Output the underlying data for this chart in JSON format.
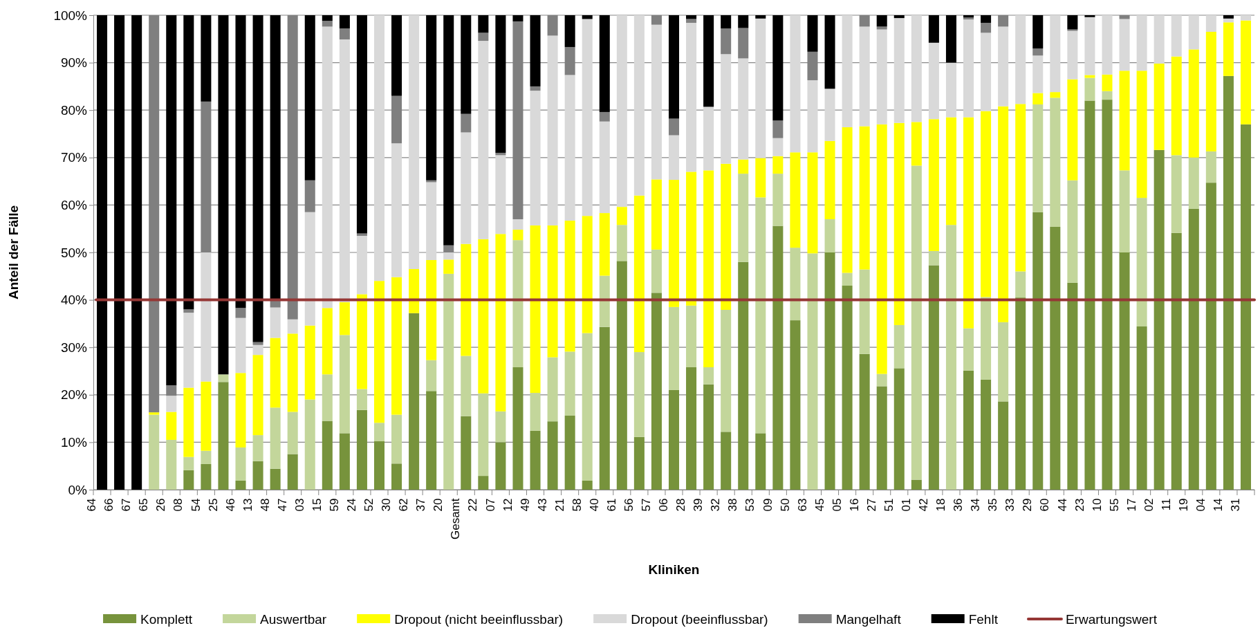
{
  "chart_data": {
    "type": "bar",
    "stacked": true,
    "xlabel": "Kliniken",
    "ylabel": "Anteil der  Fälle",
    "legend": "bottom",
    "grid": "y",
    "categories": [
      "64",
      "66",
      "67",
      "65",
      "26",
      "08",
      "54",
      "25",
      "46",
      "13",
      "48",
      "47",
      "03",
      "15",
      "59",
      "24",
      "52",
      "30",
      "62",
      "37",
      "20",
      "Gesamt",
      "22",
      "07",
      "12",
      "49",
      "43",
      "21",
      "58",
      "40",
      "61",
      "56",
      "57",
      "06",
      "28",
      "39",
      "32",
      "38",
      "53",
      "09",
      "50",
      "63",
      "45",
      "05",
      "16",
      "27",
      "51",
      "01",
      "42",
      "18",
      "36",
      "34",
      "35",
      "33",
      "29",
      "60",
      "44",
      "23",
      "10",
      "55",
      "17",
      "02",
      "11",
      "19",
      "04",
      "14",
      "31"
    ],
    "ylim": [
      0,
      100
    ],
    "yticks": [
      {
        "value": 0,
        "label": "0%"
      },
      {
        "value": 10,
        "label": "10%"
      },
      {
        "value": 20,
        "label": "20%"
      },
      {
        "value": 30,
        "label": "30%"
      },
      {
        "value": 40,
        "label": "40%"
      },
      {
        "value": 50,
        "label": "50%"
      },
      {
        "value": 60,
        "label": "60%"
      },
      {
        "value": 70,
        "label": "70%"
      },
      {
        "value": 80,
        "label": "80%"
      },
      {
        "value": 90,
        "label": "90%"
      },
      {
        "value": 100,
        "label": "100%"
      }
    ],
    "series": [
      {
        "name": "Komplett",
        "color": "#77933c",
        "values": [
          0,
          0,
          0,
          0,
          0,
          4.1,
          5.4,
          22.7,
          1.9,
          6,
          4.4,
          7.5,
          0,
          14.5,
          11.9,
          16.8,
          10.2,
          5.5,
          37.2,
          20.8,
          0,
          15.5,
          2.9,
          10,
          25.8,
          12.4,
          14.4,
          15.6,
          1.9,
          34.3,
          48.2,
          11.1,
          41.5,
          21,
          25.8,
          22.2,
          12.2,
          48,
          11.9,
          55.6,
          35.7,
          0,
          50,
          43,
          28.6,
          21.8,
          25.6,
          2.1,
          47.3,
          0,
          25.1,
          23.2,
          18.6,
          40.5,
          58.5,
          55.4,
          43.6,
          82,
          82.2,
          50,
          34.4,
          71.6,
          54.1,
          59.2,
          64.7,
          87.2,
          77
        ]
      },
      {
        "name": "Auswertbar",
        "color": "#c3d69b",
        "values": [
          0,
          0,
          0,
          15.8,
          10.5,
          2.8,
          2.8,
          1.6,
          7,
          5.5,
          12.9,
          8.9,
          19,
          9.8,
          20.7,
          4.4,
          3.9,
          10.3,
          0,
          6.5,
          45.5,
          12.7,
          17.4,
          6.5,
          26.8,
          8,
          13.5,
          13.5,
          31.1,
          10.8,
          7.6,
          17.9,
          9.1,
          17.5,
          13,
          3.6,
          25.7,
          18.6,
          49.7,
          11,
          15.3,
          49.8,
          7,
          2.7,
          17.8,
          2.6,
          9.1,
          66.2,
          3,
          55.8,
          8.9,
          17.4,
          16.7,
          5.5,
          22.7,
          27.2,
          21.6,
          4.8,
          1.8,
          17.3,
          27.1,
          0,
          16.4,
          10.8,
          6.6,
          0,
          0
        ]
      },
      {
        "name": "Dropout (nicht beeinflussbar)",
        "color": "#ffff00",
        "values": [
          0,
          0,
          0,
          0.5,
          5.9,
          14.6,
          14.6,
          0,
          15.7,
          16.9,
          14.7,
          16.5,
          15.6,
          14,
          6.9,
          20,
          29.9,
          29,
          9.3,
          21.1,
          3,
          23.6,
          32.5,
          37.4,
          2.2,
          35.3,
          27.8,
          27.6,
          24.7,
          13.2,
          3.8,
          33,
          14.8,
          26.8,
          28.2,
          41.5,
          30.8,
          3,
          8.3,
          3.7,
          20.1,
          21.3,
          16.5,
          30.7,
          30.2,
          52.6,
          42.6,
          9.2,
          27.8,
          22.7,
          44.5,
          39.2,
          45.5,
          35.3,
          2.4,
          1.2,
          21.3,
          0.6,
          3.5,
          21,
          26.8,
          18.2,
          20.8,
          22.8,
          25.2,
          11.3,
          21.9
        ]
      },
      {
        "name": "Dropout (beeinflussbar)",
        "color": "#d9d9d9",
        "values": [
          0,
          0,
          0,
          0,
          3.4,
          15.8,
          27.2,
          0,
          11.6,
          2.1,
          6.4,
          3,
          23.9,
          59.3,
          55.4,
          12.3,
          56,
          28.2,
          53.5,
          16.4,
          1.5,
          23.5,
          41.8,
          16.6,
          2.2,
          28.4,
          40,
          30.7,
          41.5,
          19.3,
          40.4,
          38,
          32.6,
          9.4,
          31.4,
          13.4,
          23.1,
          21.3,
          29.4,
          3.8,
          28.9,
          15.2,
          11,
          23.6,
          21,
          20,
          22.1,
          22.5,
          16.1,
          11.5,
          20.6,
          16.5,
          16.8,
          18.7,
          7.9,
          16.2,
          10.2,
          12.2,
          12.5,
          10.9,
          11.7,
          10.2,
          8.7,
          7.2,
          3.5,
          0.8,
          1.1
        ]
      },
      {
        "name": "Mangelhaft",
        "color": "#7f7f7f",
        "values": [
          0,
          0,
          0,
          83.7,
          2.2,
          0.7,
          31.8,
          0,
          2.1,
          0.6,
          1.6,
          64.1,
          6.7,
          1.2,
          2.3,
          0.5,
          0,
          10,
          0,
          0.4,
          1.5,
          3.9,
          1.7,
          0.5,
          41.7,
          0.9,
          4.3,
          5.9,
          0,
          2,
          0,
          0,
          2,
          3.5,
          0.8,
          0,
          5.4,
          6.4,
          0,
          3.7,
          0,
          6,
          0,
          0,
          2.4,
          0.6,
          0,
          0,
          0,
          0,
          0.4,
          2.1,
          2.4,
          0,
          1.5,
          0,
          0.3,
          0,
          0,
          0.8,
          0,
          0,
          0,
          0,
          0,
          0,
          0
        ]
      },
      {
        "name": "Fehlt",
        "color": "#000000",
        "values": [
          100,
          100,
          100,
          0,
          78,
          62,
          18.2,
          75.7,
          61.7,
          68.9,
          60,
          0,
          34.8,
          1.2,
          2.8,
          46,
          0,
          17,
          0,
          34.8,
          48.5,
          20.8,
          3.7,
          29,
          1.3,
          15,
          0,
          6.7,
          0.8,
          20.4,
          0,
          0,
          0,
          21.8,
          0.8,
          19.3,
          2.8,
          2.7,
          0.7,
          22.2,
          0,
          7.7,
          15.5,
          0,
          0,
          2.4,
          0.6,
          0,
          5.8,
          10,
          0.5,
          1.6,
          0,
          0,
          7,
          0,
          3,
          0.4,
          0,
          0,
          0,
          0,
          0,
          0,
          0,
          0.7,
          0
        ]
      }
    ],
    "ref_lines": [
      {
        "axis": "y",
        "value": 40,
        "label": "Erwartungswert",
        "color": "#953735"
      }
    ]
  }
}
